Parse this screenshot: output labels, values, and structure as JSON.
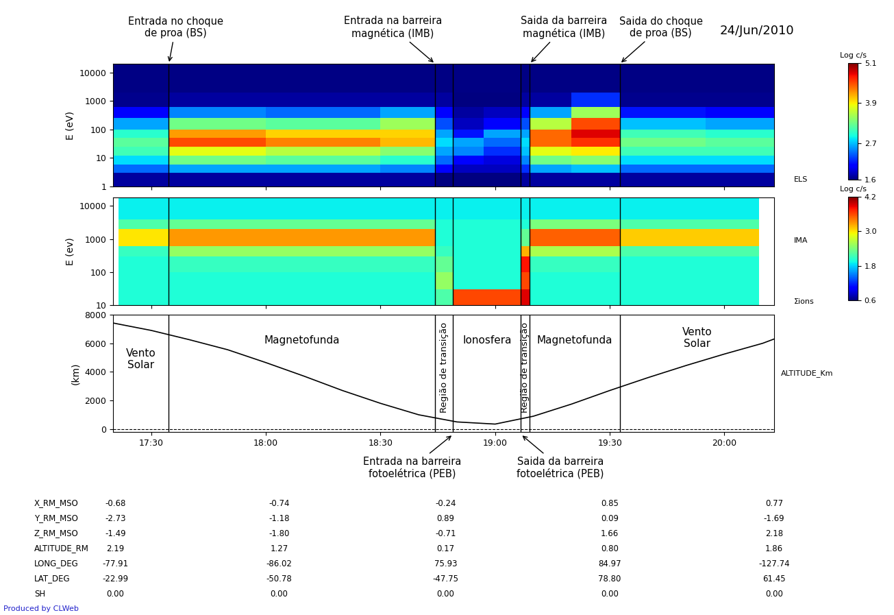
{
  "chart_data": [
    {
      "type": "heatmap",
      "panel_label": "ELS",
      "ylabel": "E (eV)",
      "log": "y",
      "tick_labels": "y",
      "xlim": [
        1040,
        1213
      ],
      "xticks": [
        {
          "value": 1050,
          "label": "17:30"
        },
        {
          "value": 1080,
          "label": "18:00"
        },
        {
          "value": 1110,
          "label": "18:30"
        },
        {
          "value": 1140,
          "label": "19:00"
        },
        {
          "value": 1170,
          "label": "19:30"
        },
        {
          "value": 1200,
          "label": "20:00"
        }
      ],
      "ylim": [
        1,
        20000
      ],
      "yticks": [
        1,
        10,
        100,
        1000,
        10000
      ],
      "x_edges": [
        1040,
        1054.6,
        1080,
        1110,
        1124.3,
        1129,
        1137,
        1146.7,
        1149,
        1160,
        1172.6,
        1195,
        1213
      ],
      "y_edges": [
        1,
        3,
        6,
        12,
        25,
        50,
        100,
        250,
        600,
        2000,
        20000
      ],
      "cells": [
        [
          1.7,
          1.7,
          1.7,
          1.7,
          1.6,
          1.6,
          1.6,
          1.7,
          1.7,
          1.7,
          1.7,
          1.7
        ],
        [
          2.4,
          2.6,
          2.6,
          2.5,
          2.0,
          1.8,
          1.8,
          2.2,
          2.6,
          2.7,
          2.4,
          2.4
        ],
        [
          2.8,
          3.3,
          3.2,
          3.0,
          2.4,
          2.0,
          1.9,
          2.5,
          3.3,
          3.4,
          2.8,
          2.8
        ],
        [
          3.1,
          3.8,
          3.6,
          3.4,
          2.6,
          2.5,
          2.2,
          2.7,
          3.8,
          3.9,
          3.1,
          3.1
        ],
        [
          3.2,
          4.5,
          4.3,
          4.1,
          2.8,
          2.6,
          2.4,
          2.8,
          4.4,
          4.6,
          3.3,
          3.2
        ],
        [
          3.0,
          4.2,
          4.0,
          4.0,
          2.6,
          2.1,
          2.6,
          2.6,
          4.4,
          4.8,
          3.1,
          3.0
        ],
        [
          2.6,
          3.3,
          3.2,
          3.5,
          2.3,
          1.8,
          2.0,
          2.3,
          3.6,
          4.5,
          2.7,
          2.6
        ],
        [
          2.0,
          2.5,
          2.4,
          2.6,
          2.0,
          1.7,
          1.8,
          2.0,
          2.6,
          3.5,
          2.1,
          2.0
        ],
        [
          1.65,
          1.7,
          1.7,
          1.7,
          1.7,
          1.6,
          1.6,
          1.7,
          1.7,
          2.2,
          1.65,
          1.65
        ],
        [
          1.62,
          1.62,
          1.62,
          1.62,
          1.62,
          1.62,
          1.62,
          1.62,
          1.62,
          1.62,
          1.62,
          1.62
        ]
      ],
      "colorbar": {
        "label": "Log c/s",
        "range": [
          1.6,
          5.1
        ],
        "ticks": [
          1.6,
          2.7,
          3.9,
          5.1
        ]
      }
    },
    {
      "type": "heatmap",
      "panel_label": "IMA",
      "secondary_label": "Σions",
      "ylabel": "E (ev)",
      "log": "y",
      "tick_labels": "y",
      "xlim": [
        1040,
        1213
      ],
      "xticks": [
        {
          "value": 1050,
          "label": "17:30"
        },
        {
          "value": 1080,
          "label": "18:00"
        },
        {
          "value": 1110,
          "label": "18:30"
        },
        {
          "value": 1140,
          "label": "19:00"
        },
        {
          "value": 1170,
          "label": "19:30"
        },
        {
          "value": 1200,
          "label": "20:00"
        }
      ],
      "ylim": [
        10,
        18000
      ],
      "yticks": [
        10,
        100,
        1000,
        10000
      ],
      "x_edges": [
        1041.5,
        1054.6,
        1124.3,
        1129,
        1146.7,
        1149,
        1172.6,
        1209
      ],
      "y_edges": [
        10,
        30,
        100,
        300,
        600,
        2000,
        4000,
        18000
      ],
      "cells": [
        [
          2.0,
          2.0,
          2.2,
          3.6,
          3.9,
          2.0,
          2.0
        ],
        [
          2.0,
          2.0,
          2.5,
          2.0,
          3.6,
          2.0,
          2.0
        ],
        [
          2.0,
          2.1,
          2.3,
          2.0,
          3.8,
          2.1,
          2.0
        ],
        [
          2.1,
          2.5,
          2.1,
          2.0,
          3.2,
          2.6,
          2.2
        ],
        [
          3.0,
          3.3,
          2.0,
          2.0,
          2.3,
          3.5,
          3.1
        ],
        [
          2.2,
          2.3,
          2.0,
          2.0,
          2.0,
          2.4,
          2.2
        ],
        [
          1.9,
          1.9,
          1.9,
          1.9,
          1.9,
          1.9,
          1.9
        ]
      ],
      "colorbar": {
        "label": "Log c/s",
        "range": [
          0.6,
          4.2
        ],
        "ticks": [
          0.6,
          1.8,
          3.0,
          4.2
        ]
      }
    },
    {
      "type": "line",
      "panel_label": "ALTITUDE_Km",
      "ylabel": "(km)",
      "color": "#000000",
      "line_style": "solid",
      "xlim": [
        1040,
        1213
      ],
      "xticks": [
        {
          "value": 1050,
          "label": "17:30"
        },
        {
          "value": 1080,
          "label": "18:00"
        },
        {
          "value": 1110,
          "label": "18:30"
        },
        {
          "value": 1140,
          "label": "19:00"
        },
        {
          "value": 1170,
          "label": "19:30"
        },
        {
          "value": 1200,
          "label": "20:00"
        }
      ],
      "ylim": [
        -200,
        8000
      ],
      "yticks": [
        0,
        2000,
        4000,
        6000,
        8000
      ],
      "x": [
        1040,
        1050,
        1060,
        1070,
        1080,
        1090,
        1100,
        1110,
        1120,
        1130,
        1140,
        1150,
        1160,
        1170,
        1180,
        1190,
        1200,
        1210,
        1213
      ],
      "values": [
        7420,
        6900,
        6250,
        5550,
        4650,
        3700,
        2700,
        1800,
        1000,
        500,
        350,
        900,
        1750,
        2700,
        3600,
        4450,
        5250,
        6000,
        6300
      ],
      "hline": 0,
      "regions": [
        {
          "label": "Vento\nSolar",
          "start": 1040,
          "end": 1054.6
        },
        {
          "label": "Magnetofunda",
          "start": 1054.6,
          "end": 1124.3
        },
        {
          "label": "Região de transição",
          "start": 1124.3,
          "end": 1129
        },
        {
          "label": "Ionosfera",
          "start": 1129,
          "end": 1146.7
        },
        {
          "label": "Região de transição",
          "start": 1146.7,
          "end": 1149
        },
        {
          "label": "Magnetofunda",
          "start": 1149,
          "end": 1172.6
        },
        {
          "label": "Vento\nSolar",
          "start": 1172.6,
          "end": 1213
        }
      ]
    }
  ],
  "events": [
    {
      "time": 1054.6,
      "label": "Entrada no choque\nde proa (BS)",
      "side": "top"
    },
    {
      "time": 1124.3,
      "label": "Entrada na barreira\nmagnética (IMB)",
      "side": "top"
    },
    {
      "time": 1129,
      "label": "Entrada na barreira\nfotoelétrica (PEB)",
      "side": "bottom"
    },
    {
      "time": 1146.7,
      "label": "Saida da barreira\nfotoelétrica (PEB)",
      "side": "bottom"
    },
    {
      "time": 1149,
      "label": "Saida da barreira\nmagnética (IMB)",
      "side": "top"
    },
    {
      "time": 1172.6,
      "label": "Saida do choque\nde proa (BS)",
      "side": "top"
    }
  ],
  "date": "24/Jun/2010",
  "table": {
    "row_labels": [
      "X_RM_MSO",
      "Y_RM_MSO",
      "Z_RM_MSO",
      "ALTITUDE_RM",
      "LONG_DEG",
      "LAT_DEG",
      "SH"
    ],
    "column_times": [
      1040.6,
      1083.5,
      1127,
      1170,
      1213
    ],
    "rows": [
      [
        "-0.68",
        "-0.74",
        "-0.24",
        "0.85",
        "0.77"
      ],
      [
        "-2.73",
        "-1.18",
        "0.89",
        "0.09",
        "-1.69"
      ],
      [
        "-1.49",
        "-1.80",
        "-0.71",
        "1.66",
        "2.18"
      ],
      [
        "2.19",
        "1.27",
        "0.17",
        "0.80",
        "1.86"
      ],
      [
        "-77.91",
        "-86.02",
        "75.93",
        "84.97",
        "-127.74"
      ],
      [
        "-22.99",
        "-50.78",
        "-47.75",
        "78.80",
        "61.45"
      ],
      [
        "0.00",
        "0.00",
        "0.00",
        "0.00",
        "0.00"
      ]
    ]
  },
  "footer": "Produced by CLWeb"
}
